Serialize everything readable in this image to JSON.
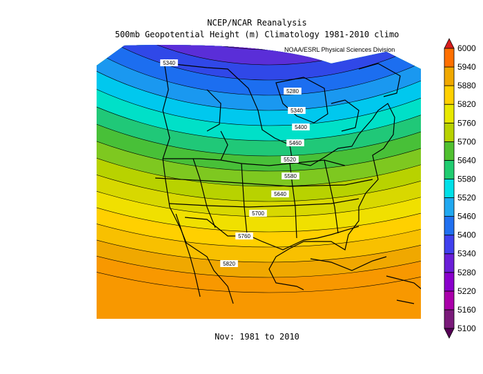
{
  "title_line1": "NCEP/NCAR Reanalysis",
  "title_line2": "500mb Geopotential Height (m) Climatology 1981-2010 climo",
  "credit": "NOAA/ESRL Physical Sciences Division",
  "bottom_label": "Nov: 1981 to 2010",
  "colorbar": {
    "levels": [
      5100,
      5160,
      5220,
      5280,
      5340,
      5400,
      5460,
      5520,
      5580,
      5640,
      5700,
      5760,
      5820,
      5880,
      5940,
      6000
    ],
    "colors": [
      "#550055",
      "#7a1a7a",
      "#aa00aa",
      "#8a00cc",
      "#6a1ed8",
      "#4040ee",
      "#2070f0",
      "#20a8f0",
      "#00e0e8",
      "#20cc70",
      "#50c030",
      "#b8d200",
      "#e8e800",
      "#ffd000",
      "#f0a800",
      "#ff7000",
      "#d81e1e"
    ]
  },
  "contour_labels": [
    "5340",
    "5280",
    "5340",
    "5400",
    "5460",
    "5520",
    "5580",
    "5640",
    "5700",
    "5760",
    "5820"
  ],
  "chart_data": {
    "type": "heatmap",
    "variable": "500mb Geopotential Height (m)",
    "period": "Nov: 1981 to 2010",
    "contour_interval": 30,
    "labeled_contours": [
      5340,
      5280,
      5400,
      5460,
      5520,
      5580,
      5640,
      5700,
      5760,
      5820
    ],
    "range": [
      5100,
      6000
    ]
  }
}
